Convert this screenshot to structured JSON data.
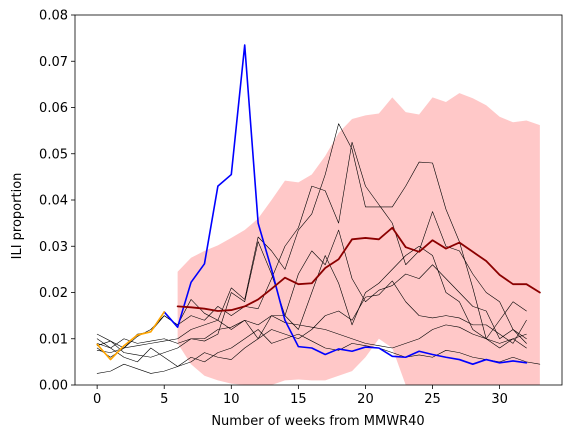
{
  "chart_data": {
    "type": "line",
    "xlabel": "Number of weeks from MMWR40",
    "ylabel": "ILI proportion",
    "xlim": [
      -1.65,
      34.65
    ],
    "ylim": [
      0,
      0.08
    ],
    "x_ticks": [
      0,
      5,
      10,
      15,
      20,
      25,
      30
    ],
    "y_ticks": [
      0.0,
      0.01,
      0.02,
      0.03,
      0.04,
      0.05,
      0.06,
      0.07,
      0.08
    ],
    "x_tick_labels": [
      "0",
      "5",
      "10",
      "15",
      "20",
      "25",
      "30"
    ],
    "y_tick_labels": [
      "0.00",
      "0.01",
      "0.02",
      "0.03",
      "0.04",
      "0.05",
      "0.06",
      "0.07",
      "0.08"
    ],
    "band": {
      "color": "#ffc8c8",
      "x": [
        6,
        7,
        8,
        9,
        10,
        11,
        12,
        13,
        14,
        15,
        16,
        17,
        18,
        19,
        20,
        21,
        22,
        23,
        24,
        25,
        26,
        27,
        28,
        29,
        30,
        31,
        32,
        33
      ],
      "upper": [
        0.0245,
        0.0275,
        0.029,
        0.0302,
        0.0318,
        0.0335,
        0.036,
        0.04,
        0.0442,
        0.0438,
        0.0455,
        0.0495,
        0.0545,
        0.0575,
        0.0583,
        0.0587,
        0.0622,
        0.059,
        0.0585,
        0.0622,
        0.0612,
        0.0631,
        0.062,
        0.0605,
        0.058,
        0.0568,
        0.0572,
        0.0562
      ],
      "lower": [
        0.009,
        0.0045,
        0.002,
        0.001,
        0.0003,
        0.0,
        0.0,
        0.0,
        0.001,
        0.0012,
        0.001,
        0.001,
        0.002,
        0.003,
        0.006,
        0.01,
        0.008,
        0.0,
        0.0,
        0.0,
        0.0,
        0.0,
        0.0,
        0.0,
        0.0,
        0.0,
        0.0,
        0.0
      ]
    },
    "series": [
      {
        "color": "#000000",
        "width": 0.6,
        "x": [
          0,
          1,
          2,
          3,
          4,
          5,
          6,
          7,
          8,
          9,
          10,
          11,
          12,
          13,
          14,
          15,
          16,
          17,
          18,
          19,
          20,
          21,
          22,
          23,
          24,
          25,
          26,
          27,
          28,
          29,
          30,
          31,
          32
        ],
        "values": [
          0.0085,
          0.0095,
          0.008,
          0.0105,
          0.012,
          0.015,
          0.013,
          0.0185,
          0.0155,
          0.014,
          0.021,
          0.0185,
          0.032,
          0.029,
          0.025,
          0.0335,
          0.037,
          0.0455,
          0.0565,
          0.051,
          0.0385,
          0.0385,
          0.0385,
          0.043,
          0.0482,
          0.048,
          0.038,
          0.031,
          0.021,
          0.01,
          0.014,
          0.018,
          0.016
        ]
      },
      {
        "color": "#000000",
        "width": 0.6,
        "x": [
          0,
          1,
          2,
          3,
          4,
          5,
          6,
          7,
          8,
          9,
          10,
          11,
          12,
          13,
          14,
          15,
          16,
          17,
          18,
          19,
          20,
          21,
          22,
          23,
          24,
          25,
          26,
          27,
          28,
          29,
          30,
          31,
          32
        ],
        "values": [
          0.008,
          0.006,
          0.008,
          0.011,
          0.0115,
          0.015,
          0.013,
          0.015,
          0.014,
          0.017,
          0.015,
          0.017,
          0.0165,
          0.023,
          0.03,
          0.034,
          0.043,
          0.042,
          0.035,
          0.0525,
          0.043,
          0.039,
          0.035,
          0.026,
          0.029,
          0.0375,
          0.03,
          0.029,
          0.024,
          0.02,
          0.018,
          0.012,
          0.01
        ]
      },
      {
        "color": "#000000",
        "width": 0.6,
        "x": [
          0,
          1,
          2,
          3,
          4,
          5,
          6,
          7,
          8,
          9,
          10,
          11,
          12,
          13,
          14,
          15,
          16,
          17,
          18,
          19,
          20,
          21,
          22,
          23,
          24,
          25,
          26,
          27,
          28,
          29,
          30,
          31,
          32
        ],
        "values": [
          0.011,
          0.0095,
          0.007,
          0.0065,
          0.006,
          0.007,
          0.008,
          0.01,
          0.0095,
          0.011,
          0.02,
          0.018,
          0.031,
          0.024,
          0.015,
          0.024,
          0.029,
          0.026,
          0.0335,
          0.023,
          0.018,
          0.0205,
          0.0215,
          0.024,
          0.023,
          0.026,
          0.023,
          0.02,
          0.017,
          0.016,
          0.01,
          0.012,
          0.009
        ]
      },
      {
        "color": "#000000",
        "width": 0.6,
        "x": [
          0,
          1,
          2,
          3,
          4,
          5,
          6,
          7,
          8,
          9,
          10,
          11,
          12,
          13,
          14,
          15,
          16,
          17,
          18,
          19,
          20,
          21,
          22,
          23,
          24,
          25,
          26,
          27,
          28,
          29,
          30,
          31,
          32
        ],
        "values": [
          0.01,
          0.008,
          0.006,
          0.005,
          0.008,
          0.006,
          0.004,
          0.005,
          0.007,
          0.006,
          0.0055,
          0.008,
          0.01,
          0.015,
          0.015,
          0.012,
          0.02,
          0.028,
          0.022,
          0.013,
          0.02,
          0.022,
          0.025,
          0.028,
          0.03,
          0.028,
          0.02,
          0.018,
          0.012,
          0.01,
          0.008,
          0.01,
          0.011
        ]
      },
      {
        "color": "#000000",
        "width": 0.6,
        "x": [
          0,
          1,
          2,
          3,
          4,
          5,
          6,
          7,
          8,
          9,
          10,
          11,
          12,
          13,
          14,
          15,
          16,
          17,
          18,
          19,
          20,
          21,
          22,
          23,
          24,
          25,
          26,
          27,
          28,
          29,
          30,
          31,
          32
        ],
        "values": [
          0.0075,
          0.007,
          0.008,
          0.0085,
          0.009,
          0.0095,
          0.01,
          0.012,
          0.013,
          0.014,
          0.012,
          0.014,
          0.013,
          0.015,
          0.0135,
          0.013,
          0.0125,
          0.012,
          0.011,
          0.01,
          0.009,
          0.0085,
          0.008,
          0.009,
          0.01,
          0.012,
          0.013,
          0.0125,
          0.011,
          0.01,
          0.009,
          0.01,
          0.008
        ]
      },
      {
        "color": "#000000",
        "width": 0.6,
        "x": [
          0,
          1,
          2,
          3,
          4,
          5,
          6,
          7,
          8,
          9,
          10,
          11,
          12,
          13,
          14,
          15,
          16,
          17,
          18,
          19,
          20,
          21,
          22,
          23,
          24,
          25,
          26,
          27,
          28,
          29,
          30,
          31,
          32,
          33
        ],
        "values": [
          0.0025,
          0.003,
          0.0045,
          0.0035,
          0.0025,
          0.003,
          0.004,
          0.006,
          0.005,
          0.007,
          0.008,
          0.01,
          0.012,
          0.009,
          0.01,
          0.011,
          0.0095,
          0.008,
          0.0075,
          0.009,
          0.0085,
          0.008,
          0.007,
          0.006,
          0.0065,
          0.006,
          0.0075,
          0.007,
          0.006,
          0.0055,
          0.005,
          0.006,
          0.005,
          0.0045
        ]
      },
      {
        "color": "#000000",
        "width": 0.6,
        "x": [
          0,
          1,
          2,
          3,
          4,
          5,
          6,
          7,
          8,
          9,
          10,
          11,
          12,
          13,
          14,
          15,
          16,
          17,
          18,
          19,
          20,
          21,
          22,
          23,
          24,
          25,
          26,
          27,
          28,
          29,
          30,
          31,
          32
        ],
        "values": [
          0.009,
          0.008,
          0.01,
          0.009,
          0.0095,
          0.01,
          0.009,
          0.01,
          0.01,
          0.012,
          0.0125,
          0.014,
          0.01,
          0.012,
          0.011,
          0.01,
          0.012,
          0.015,
          0.016,
          0.014,
          0.019,
          0.0195,
          0.0225,
          0.018,
          0.015,
          0.0145,
          0.015,
          0.0145,
          0.013,
          0.013,
          0.011,
          0.009,
          0.014
        ]
      },
      {
        "color": "#0000ff",
        "width": 1.6,
        "x": [
          5,
          6,
          7,
          8,
          9,
          10,
          11,
          12,
          13,
          14,
          15,
          16,
          17,
          18,
          19,
          20,
          21,
          22,
          23,
          24,
          25,
          26,
          27,
          28,
          29,
          30,
          31,
          32
        ],
        "values": [
          0.0158,
          0.0125,
          0.0222,
          0.0262,
          0.043,
          0.0455,
          0.0735,
          0.035,
          0.025,
          0.014,
          0.0083,
          0.008,
          0.0066,
          0.0078,
          0.0073,
          0.0082,
          0.008,
          0.0062,
          0.006,
          0.0073,
          0.0066,
          0.006,
          0.0055,
          0.0045,
          0.0055,
          0.0048,
          0.0052,
          0.0048
        ]
      },
      {
        "color": "#ffa500",
        "width": 1.6,
        "x": [
          0,
          1,
          2,
          3,
          4,
          5
        ],
        "values": [
          0.0088,
          0.0055,
          0.0085,
          0.0108,
          0.0115,
          0.0158
        ]
      },
      {
        "color": "#8b0000",
        "width": 1.8,
        "x": [
          6,
          7,
          8,
          9,
          10,
          11,
          12,
          13,
          14,
          15,
          16,
          17,
          18,
          19,
          20,
          21,
          22,
          23,
          24,
          25,
          26,
          27,
          28,
          29,
          30,
          31,
          32,
          33
        ],
        "values": [
          0.017,
          0.0168,
          0.0165,
          0.016,
          0.0162,
          0.017,
          0.0185,
          0.0208,
          0.0232,
          0.0218,
          0.022,
          0.0253,
          0.0272,
          0.0315,
          0.0318,
          0.0315,
          0.034,
          0.0298,
          0.0288,
          0.0313,
          0.0295,
          0.0308,
          0.0288,
          0.0268,
          0.0238,
          0.0218,
          0.0218,
          0.02
        ]
      }
    ]
  }
}
